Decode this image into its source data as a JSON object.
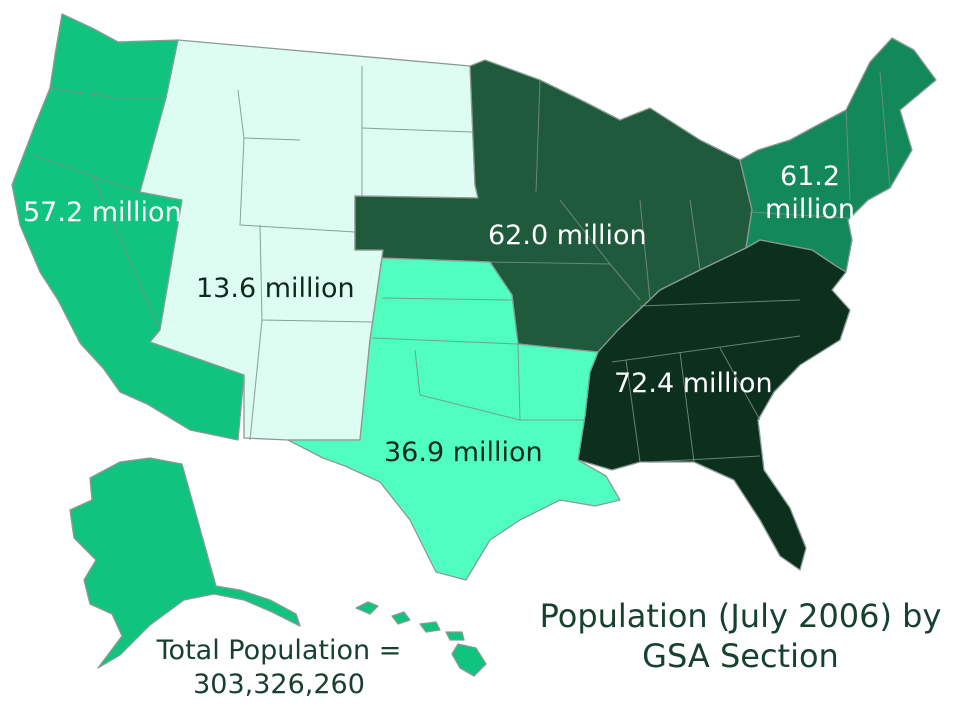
{
  "title": "Population (July 2006) by GSA Section",
  "total": {
    "label": "Total Population =",
    "value": "303,326,260"
  },
  "regions": [
    {
      "id": "west",
      "label": "57.2 million",
      "color": "#10c47f"
    },
    {
      "id": "mountain",
      "label": "13.6 million",
      "color": "#ddfdf2"
    },
    {
      "id": "midwest",
      "label": "62.0 million",
      "color": "#1e5a3b"
    },
    {
      "id": "northeast",
      "label": "61.2 million",
      "color": "#13885a"
    },
    {
      "id": "southeast",
      "label": "72.4 million",
      "color": "#0c301d"
    },
    {
      "id": "southwest",
      "label": "36.9 million",
      "color": "#50ffbf"
    }
  ]
}
